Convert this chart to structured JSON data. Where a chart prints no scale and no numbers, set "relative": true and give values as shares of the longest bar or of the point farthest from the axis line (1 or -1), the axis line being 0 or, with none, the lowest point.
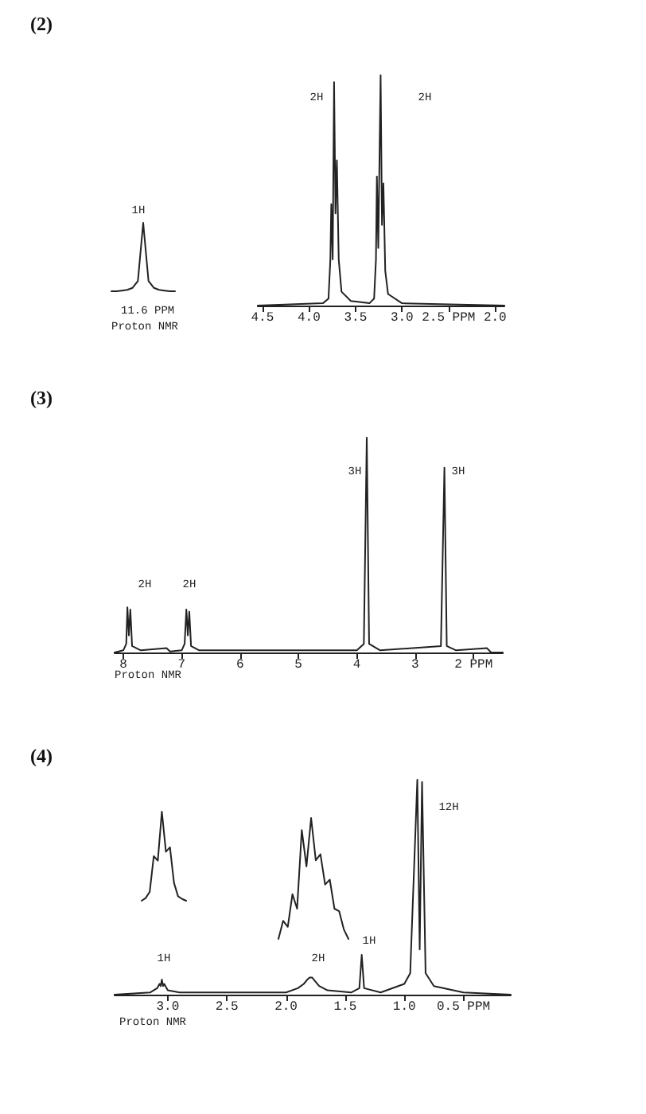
{
  "chart_data": [
    {
      "type": "line",
      "title": "(2)",
      "relative": true,
      "color": "#222222",
      "marker": "none",
      "categories": [
        null,
        null,
        null,
        null,
        null,
        null,
        null,
        null,
        null,
        null,
        null,
        null,
        null
      ],
      "values": [
        0,
        0,
        0.01,
        0.02,
        0.05,
        0.15,
        1,
        0.15,
        0.05,
        0.02,
        0.01,
        0,
        0
      ],
      "annotations": [
        "1H",
        "11.6 PPM",
        "Proton NMR"
      ]
    },
    {
      "type": "line",
      "relative": true,
      "color": "#222222",
      "marker": "none",
      "x": [
        4.55,
        3.85,
        3.79,
        3.77,
        3.76,
        3.745,
        3.73,
        3.715,
        3.7,
        3.68,
        3.65,
        3.55,
        3.35,
        3.3,
        3.28,
        3.27,
        3.255,
        3.23,
        3.215,
        3.2,
        3.18,
        3.15,
        3.0,
        1.9
      ],
      "values": [
        0,
        0.01,
        0.03,
        0.2,
        0.44,
        0.2,
        0.97,
        0.4,
        0.63,
        0.2,
        0.06,
        0.02,
        0.01,
        0.03,
        0.2,
        0.56,
        0.25,
        1.0,
        0.35,
        0.53,
        0.15,
        0.05,
        0.01,
        0
      ],
      "xlim": [
        4.55,
        1.9
      ],
      "xticks": [
        4.5,
        {
          "value": 4.0,
          "label": "4.0"
        },
        3.5,
        {
          "value": 3.0,
          "label": "3.0"
        },
        {
          "value": 2.5,
          "label": "2.5 PPM"
        },
        {
          "value": 2.0,
          "label": "2.0"
        }
      ],
      "annotations": [
        "2H",
        "2H"
      ]
    },
    {
      "type": "line",
      "title": "(3)",
      "relative": true,
      "color": "#222222",
      "marker": "none",
      "x": [
        8.15,
        8.0,
        7.95,
        7.93,
        7.905,
        7.88,
        7.85,
        7.7,
        7.26,
        7.2,
        7.0,
        6.95,
        6.92,
        6.895,
        6.87,
        6.84,
        6.7,
        4.0,
        3.88,
        3.83,
        3.79,
        3.6,
        2.56,
        2.5,
        2.46,
        2.3,
        1.77,
        1.7,
        1.5
      ],
      "values": [
        0,
        0.01,
        0.04,
        0.21,
        0.08,
        0.2,
        0.03,
        0.01,
        0.02,
        0.005,
        0.01,
        0.04,
        0.2,
        0.08,
        0.19,
        0.03,
        0.01,
        0.01,
        0.04,
        1.0,
        0.04,
        0.01,
        0.03,
        0.86,
        0.03,
        0.01,
        0.02,
        0,
        0
      ],
      "xlim": [
        8.15,
        1.5
      ],
      "xticks": [
        8,
        7,
        6,
        5,
        4,
        3,
        {
          "value": 2,
          "label": "2 PPM"
        }
      ],
      "annotations": [
        "2H",
        "2H",
        "3H",
        "3H",
        "Proton NMR"
      ]
    },
    {
      "type": "line",
      "title": "(4)",
      "relative": true,
      "color": "#222222",
      "marker": "none",
      "x": [
        3.45,
        3.15,
        3.09,
        3.07,
        3.06,
        3.05,
        3.04,
        3.03,
        3.0,
        2.9,
        2.0,
        1.9,
        1.85,
        1.82,
        1.8,
        1.78,
        1.75,
        1.72,
        1.65,
        1.45,
        1.38,
        1.36,
        1.34,
        1.2,
        1.0,
        0.95,
        0.89,
        0.87,
        0.85,
        0.82,
        0.75,
        0.5,
        0.1
      ],
      "values": [
        0,
        0.01,
        0.03,
        0.05,
        0.04,
        0.07,
        0.04,
        0.05,
        0.02,
        0.01,
        0.01,
        0.03,
        0.05,
        0.07,
        0.08,
        0.08,
        0.06,
        0.04,
        0.02,
        0.01,
        0.03,
        0.185,
        0.03,
        0.01,
        0.05,
        0.1,
        1.0,
        0.21,
        0.99,
        0.1,
        0.04,
        0.01,
        0
      ],
      "xlim": [
        3.45,
        0.1
      ],
      "xticks": [
        {
          "value": 3.0,
          "label": "3.0"
        },
        2.5,
        {
          "value": 2.0,
          "label": "2.0"
        },
        1.5,
        {
          "value": 1.0,
          "label": "1.0"
        },
        {
          "value": 0.5,
          "label": "0.5 PPM"
        }
      ],
      "annotations": [
        "1H",
        "2H",
        "1H",
        "12H",
        "Proton NMR"
      ]
    },
    {
      "type": "line",
      "relative": true,
      "color": "#222222",
      "marker": "none",
      "categories": [
        null,
        null,
        null,
        null,
        null,
        null,
        null,
        null,
        null,
        null,
        null,
        null
      ],
      "values": [
        0,
        0.03,
        0.1,
        0.5,
        0.45,
        1,
        0.55,
        0.6,
        0.2,
        0.05,
        0.02,
        0
      ]
    },
    {
      "type": "line",
      "relative": true,
      "color": "#222222",
      "marker": "none",
      "categories": [
        null,
        null,
        null,
        null,
        null,
        null,
        null,
        null,
        null,
        null,
        null,
        null,
        null,
        null,
        null,
        null
      ],
      "values": [
        0,
        0.15,
        0.1,
        0.37,
        0.25,
        0.9,
        0.6,
        1,
        0.65,
        0.7,
        0.45,
        0.49,
        0.25,
        0.23,
        0.08,
        0
      ]
    }
  ]
}
